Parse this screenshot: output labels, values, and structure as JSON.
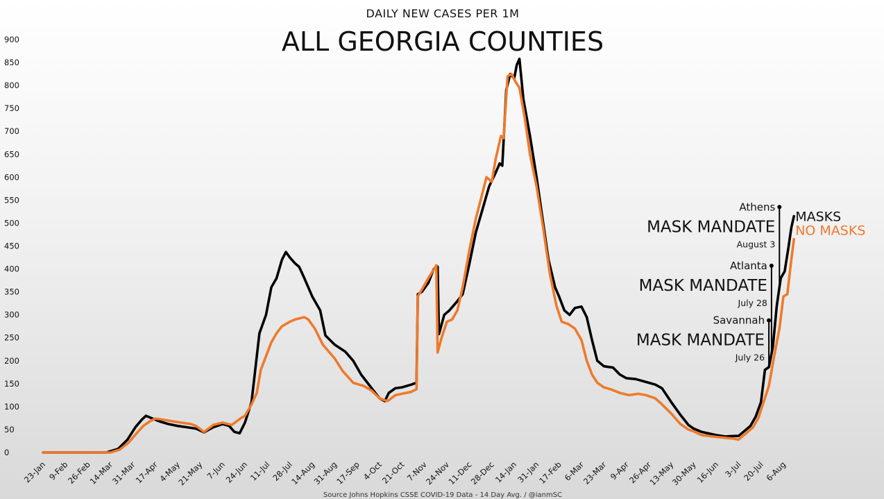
{
  "chart_data": {
    "type": "line",
    "subtitle": "DAILY NEW CASES PER 1M",
    "title": "ALL GEORGIA COUNTIES",
    "source": "Source Johns Hopkins CSSE COVID-19 Data - 14 Day Avg. / @ianmSC",
    "ylim": [
      0,
      900
    ],
    "yticks": [
      0,
      50,
      100,
      150,
      200,
      250,
      300,
      350,
      400,
      450,
      500,
      550,
      600,
      650,
      700,
      750,
      800,
      850,
      900
    ],
    "xlim": [
      "2020-01-23",
      "2021-08-20"
    ],
    "xticks": [
      {
        "date": "2020-01-23",
        "label": "23-Jan"
      },
      {
        "date": "2020-02-09",
        "label": "9-Feb"
      },
      {
        "date": "2020-02-26",
        "label": "26-Feb"
      },
      {
        "date": "2020-03-14",
        "label": "14-Mar"
      },
      {
        "date": "2020-03-31",
        "label": "31-Mar"
      },
      {
        "date": "2020-04-17",
        "label": "17-Apr"
      },
      {
        "date": "2020-05-04",
        "label": "4-May"
      },
      {
        "date": "2020-05-21",
        "label": "21-May"
      },
      {
        "date": "2020-06-07",
        "label": "7-Jun"
      },
      {
        "date": "2020-06-24",
        "label": "24-Jun"
      },
      {
        "date": "2020-07-11",
        "label": "11-Jul"
      },
      {
        "date": "2020-07-28",
        "label": "28-Jul"
      },
      {
        "date": "2020-08-14",
        "label": "14-Aug"
      },
      {
        "date": "2020-08-31",
        "label": "31-Aug"
      },
      {
        "date": "2020-09-17",
        "label": "17-Sep"
      },
      {
        "date": "2020-10-04",
        "label": "4-Oct"
      },
      {
        "date": "2020-10-21",
        "label": "21-Oct"
      },
      {
        "date": "2020-11-07",
        "label": "7-Nov"
      },
      {
        "date": "2020-11-24",
        "label": "24-Nov"
      },
      {
        "date": "2020-12-11",
        "label": "11-Dec"
      },
      {
        "date": "2020-12-28",
        "label": "28-Dec"
      },
      {
        "date": "2021-01-14",
        "label": "14-Jan"
      },
      {
        "date": "2021-01-31",
        "label": "31-Jan"
      },
      {
        "date": "2021-02-17",
        "label": "17-Feb"
      },
      {
        "date": "2021-03-06",
        "label": "6-Mar"
      },
      {
        "date": "2021-03-23",
        "label": "23-Mar"
      },
      {
        "date": "2021-04-09",
        "label": "9-Apr"
      },
      {
        "date": "2021-04-26",
        "label": "26-Apr"
      },
      {
        "date": "2021-05-13",
        "label": "13-May"
      },
      {
        "date": "2021-05-30",
        "label": "30-May"
      },
      {
        "date": "2021-06-16",
        "label": "16-Jun"
      },
      {
        "date": "2021-07-03",
        "label": "3-Jul"
      },
      {
        "date": "2021-07-20",
        "label": "20-Jul"
      },
      {
        "date": "2021-08-06",
        "label": "6-Aug"
      }
    ],
    "grid": false,
    "series": [
      {
        "name": "MASKS",
        "color": "#000000",
        "points": [
          [
            "2020-01-23",
            0
          ],
          [
            "2020-03-11",
            0
          ],
          [
            "2020-03-20",
            8
          ],
          [
            "2020-03-27",
            28
          ],
          [
            "2020-04-02",
            55
          ],
          [
            "2020-04-07",
            72
          ],
          [
            "2020-04-10",
            80
          ],
          [
            "2020-04-15",
            74
          ],
          [
            "2020-04-20",
            68
          ],
          [
            "2020-04-27",
            62
          ],
          [
            "2020-05-04",
            58
          ],
          [
            "2020-05-11",
            55
          ],
          [
            "2020-05-18",
            52
          ],
          [
            "2020-05-24",
            44
          ],
          [
            "2020-05-31",
            55
          ],
          [
            "2020-06-07",
            62
          ],
          [
            "2020-06-12",
            58
          ],
          [
            "2020-06-16",
            45
          ],
          [
            "2020-06-20",
            42
          ],
          [
            "2020-06-24",
            65
          ],
          [
            "2020-06-29",
            110
          ],
          [
            "2020-07-03",
            210
          ],
          [
            "2020-07-05",
            260
          ],
          [
            "2020-07-10",
            300
          ],
          [
            "2020-07-14",
            360
          ],
          [
            "2020-07-18",
            380
          ],
          [
            "2020-07-22",
            420
          ],
          [
            "2020-07-25",
            437
          ],
          [
            "2020-07-28",
            425
          ],
          [
            "2020-08-01",
            412
          ],
          [
            "2020-08-04",
            405
          ],
          [
            "2020-08-08",
            380
          ],
          [
            "2020-08-14",
            340
          ],
          [
            "2020-08-20",
            310
          ],
          [
            "2020-08-24",
            255
          ],
          [
            "2020-08-31",
            235
          ],
          [
            "2020-09-08",
            220
          ],
          [
            "2020-09-14",
            200
          ],
          [
            "2020-09-20",
            170
          ],
          [
            "2020-09-28",
            140
          ],
          [
            "2020-10-04",
            118
          ],
          [
            "2020-10-08",
            112
          ],
          [
            "2020-10-11",
            130
          ],
          [
            "2020-10-16",
            140
          ],
          [
            "2020-10-21",
            142
          ],
          [
            "2020-10-28",
            148
          ],
          [
            "2020-11-01",
            152
          ],
          [
            "2020-11-02",
            345
          ],
          [
            "2020-11-05",
            350
          ],
          [
            "2020-11-10",
            370
          ],
          [
            "2020-11-14",
            400
          ],
          [
            "2020-11-17",
            405
          ],
          [
            "2020-11-18",
            258
          ],
          [
            "2020-11-22",
            300
          ],
          [
            "2020-11-26",
            310
          ],
          [
            "2020-12-02",
            330
          ],
          [
            "2020-12-06",
            345
          ],
          [
            "2020-12-11",
            410
          ],
          [
            "2020-12-16",
            480
          ],
          [
            "2020-12-22",
            540
          ],
          [
            "2020-12-26",
            580
          ],
          [
            "2020-12-31",
            610
          ],
          [
            "2021-01-03",
            630
          ],
          [
            "2021-01-05",
            625
          ],
          [
            "2021-01-08",
            790
          ],
          [
            "2021-01-11",
            825
          ],
          [
            "2021-01-14",
            815
          ],
          [
            "2021-01-16",
            845
          ],
          [
            "2021-01-18",
            858
          ],
          [
            "2021-01-21",
            770
          ],
          [
            "2021-01-26",
            690
          ],
          [
            "2021-01-31",
            600
          ],
          [
            "2021-02-04",
            520
          ],
          [
            "2021-02-09",
            420
          ],
          [
            "2021-02-14",
            360
          ],
          [
            "2021-02-17",
            340
          ],
          [
            "2021-02-21",
            310
          ],
          [
            "2021-02-25",
            300
          ],
          [
            "2021-03-01",
            315
          ],
          [
            "2021-03-06",
            318
          ],
          [
            "2021-03-10",
            295
          ],
          [
            "2021-03-14",
            245
          ],
          [
            "2021-03-18",
            200
          ],
          [
            "2021-03-23",
            188
          ],
          [
            "2021-03-30",
            185
          ],
          [
            "2021-04-04",
            170
          ],
          [
            "2021-04-09",
            162
          ],
          [
            "2021-04-16",
            160
          ],
          [
            "2021-04-26",
            152
          ],
          [
            "2021-05-01",
            148
          ],
          [
            "2021-05-06",
            140
          ],
          [
            "2021-05-13",
            110
          ],
          [
            "2021-05-20",
            82
          ],
          [
            "2021-05-26",
            60
          ],
          [
            "2021-05-30",
            52
          ],
          [
            "2021-06-05",
            45
          ],
          [
            "2021-06-16",
            38
          ],
          [
            "2021-06-23",
            35
          ],
          [
            "2021-06-30",
            36
          ],
          [
            "2021-07-03",
            36
          ],
          [
            "2021-07-08",
            48
          ],
          [
            "2021-07-12",
            58
          ],
          [
            "2021-07-16",
            78
          ],
          [
            "2021-07-20",
            110
          ],
          [
            "2021-07-23",
            180
          ],
          [
            "2021-07-26",
            186
          ],
          [
            "2021-07-29",
            230
          ],
          [
            "2021-08-01",
            320
          ],
          [
            "2021-08-04",
            380
          ],
          [
            "2021-08-07",
            395
          ],
          [
            "2021-08-10",
            450
          ],
          [
            "2021-08-12",
            490
          ],
          [
            "2021-08-14",
            515
          ]
        ]
      },
      {
        "name": "NO MASKS",
        "color": "#ee7a2c",
        "points": [
          [
            "2020-01-23",
            0
          ],
          [
            "2020-03-14",
            0
          ],
          [
            "2020-03-21",
            6
          ],
          [
            "2020-03-28",
            22
          ],
          [
            "2020-04-03",
            42
          ],
          [
            "2020-04-08",
            58
          ],
          [
            "2020-04-13",
            68
          ],
          [
            "2020-04-17",
            74
          ],
          [
            "2020-04-22",
            72
          ],
          [
            "2020-04-30",
            68
          ],
          [
            "2020-05-07",
            65
          ],
          [
            "2020-05-14",
            62
          ],
          [
            "2020-05-18",
            58
          ],
          [
            "2020-05-24",
            45
          ],
          [
            "2020-05-31",
            60
          ],
          [
            "2020-06-07",
            65
          ],
          [
            "2020-06-14",
            60
          ],
          [
            "2020-06-21",
            75
          ],
          [
            "2020-06-24",
            80
          ],
          [
            "2020-06-29",
            105
          ],
          [
            "2020-07-03",
            130
          ],
          [
            "2020-07-06",
            180
          ],
          [
            "2020-07-10",
            210
          ],
          [
            "2020-07-14",
            240
          ],
          [
            "2020-07-18",
            260
          ],
          [
            "2020-07-22",
            275
          ],
          [
            "2020-07-28",
            285
          ],
          [
            "2020-08-01",
            290
          ],
          [
            "2020-08-08",
            295
          ],
          [
            "2020-08-11",
            290
          ],
          [
            "2020-08-16",
            270
          ],
          [
            "2020-08-22",
            235
          ],
          [
            "2020-08-31",
            205
          ],
          [
            "2020-09-06",
            178
          ],
          [
            "2020-09-14",
            152
          ],
          [
            "2020-09-22",
            145
          ],
          [
            "2020-09-28",
            135
          ],
          [
            "2020-10-04",
            118
          ],
          [
            "2020-10-10",
            112
          ],
          [
            "2020-10-16",
            125
          ],
          [
            "2020-10-21",
            128
          ],
          [
            "2020-10-28",
            132
          ],
          [
            "2020-11-01",
            138
          ],
          [
            "2020-11-02",
            340
          ],
          [
            "2020-11-05",
            355
          ],
          [
            "2020-11-10",
            380
          ],
          [
            "2020-11-16",
            408
          ],
          [
            "2020-11-17",
            218
          ],
          [
            "2020-11-20",
            250
          ],
          [
            "2020-11-24",
            285
          ],
          [
            "2020-11-28",
            290
          ],
          [
            "2020-12-02",
            310
          ],
          [
            "2020-12-06",
            360
          ],
          [
            "2020-12-11",
            440
          ],
          [
            "2020-12-16",
            510
          ],
          [
            "2020-12-20",
            555
          ],
          [
            "2020-12-24",
            600
          ],
          [
            "2020-12-28",
            590
          ],
          [
            "2020-12-31",
            640
          ],
          [
            "2021-01-04",
            690
          ],
          [
            "2021-01-06",
            685
          ],
          [
            "2021-01-09",
            820
          ],
          [
            "2021-01-12",
            825
          ],
          [
            "2021-01-15",
            808
          ],
          [
            "2021-01-18",
            795
          ],
          [
            "2021-01-22",
            730
          ],
          [
            "2021-01-26",
            650
          ],
          [
            "2021-01-31",
            580
          ],
          [
            "2021-02-05",
            490
          ],
          [
            "2021-02-10",
            390
          ],
          [
            "2021-02-15",
            320
          ],
          [
            "2021-02-19",
            285
          ],
          [
            "2021-02-24",
            280
          ],
          [
            "2021-03-01",
            270
          ],
          [
            "2021-03-06",
            245
          ],
          [
            "2021-03-10",
            200
          ],
          [
            "2021-03-14",
            170
          ],
          [
            "2021-03-18",
            152
          ],
          [
            "2021-03-23",
            142
          ],
          [
            "2021-03-28",
            138
          ],
          [
            "2021-04-04",
            130
          ],
          [
            "2021-04-11",
            125
          ],
          [
            "2021-04-18",
            128
          ],
          [
            "2021-04-24",
            125
          ],
          [
            "2021-05-01",
            118
          ],
          [
            "2021-05-06",
            105
          ],
          [
            "2021-05-13",
            85
          ],
          [
            "2021-05-20",
            62
          ],
          [
            "2021-05-26",
            50
          ],
          [
            "2021-05-30",
            46
          ],
          [
            "2021-06-05",
            38
          ],
          [
            "2021-06-16",
            34
          ],
          [
            "2021-06-23",
            32
          ],
          [
            "2021-06-30",
            30
          ],
          [
            "2021-07-03",
            28
          ],
          [
            "2021-07-08",
            40
          ],
          [
            "2021-07-14",
            55
          ],
          [
            "2021-07-18",
            75
          ],
          [
            "2021-07-22",
            110
          ],
          [
            "2021-07-26",
            145
          ],
          [
            "2021-07-30",
            210
          ],
          [
            "2021-08-03",
            270
          ],
          [
            "2021-08-06",
            340
          ],
          [
            "2021-08-09",
            345
          ],
          [
            "2021-08-12",
            420
          ],
          [
            "2021-08-14",
            465
          ]
        ]
      }
    ],
    "legend": [
      {
        "series": "MASKS",
        "label": "MASKS",
        "placement": "right-end"
      },
      {
        "series": "NO MASKS",
        "label": "NO MASKS",
        "placement": "right-end"
      }
    ],
    "annotations": [
      {
        "city": "Athens",
        "title": "MASK MANDATE",
        "date_label": "August 3",
        "date": "2021-08-03",
        "marker_y": 535
      },
      {
        "city": "Atlanta",
        "title": "MASK MANDATE",
        "date_label": "July 28",
        "date": "2021-07-28",
        "marker_y": 407
      },
      {
        "city": "Savannah",
        "title": "MASK MANDATE",
        "date_label": "July 26",
        "date": "2021-07-26",
        "marker_y": 288
      }
    ]
  }
}
